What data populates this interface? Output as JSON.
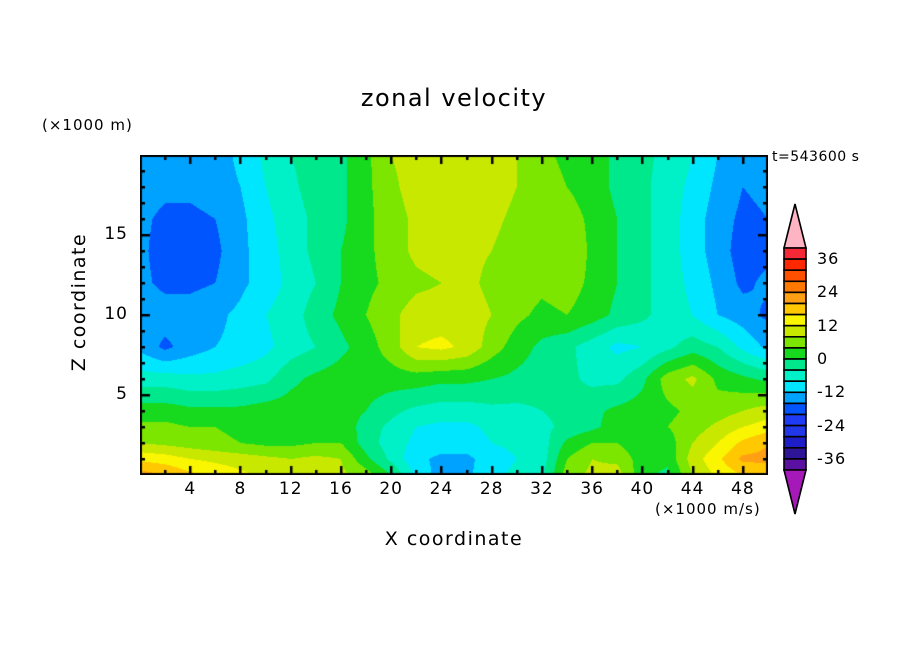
{
  "title": "zonal velocity",
  "labels": {
    "y_axis_unit": "(×1000 m)",
    "time": "t=543600 s",
    "x_axis": "X coordinate",
    "z_axis": "Z coordinate",
    "colorbar_unit": "(×1000 m/s)"
  },
  "chart_data": {
    "type": "heatmap",
    "subtype": "filled-contour",
    "title": "zonal velocity",
    "xlabel": "X coordinate",
    "ylabel": "Z coordinate",
    "x_unit": "×1000 m",
    "z_unit": "×1000 m",
    "value_unit": "×1000 m/s",
    "time_stamp": "t=543600 s",
    "x_range": [
      0,
      50
    ],
    "z_range": [
      0,
      20
    ],
    "x_major_ticks": [
      4,
      8,
      12,
      16,
      20,
      24,
      28,
      32,
      36,
      40,
      44,
      48
    ],
    "x_minor_step": 2,
    "z_major_ticks": [
      5,
      10,
      15
    ],
    "z_minor_step": 1,
    "contour_levels_min": -40,
    "contour_levels_max": 40,
    "contour_step": 4,
    "colorbar_labels": [
      "36",
      "24",
      "12",
      "0",
      "-12",
      "-24",
      "-36"
    ],
    "colorbar_label_values": [
      36,
      24,
      12,
      0,
      -12,
      -24,
      -36
    ],
    "palette_low_to_high": [
      "#5A10A0",
      "#2E1496",
      "#1E1EC8",
      "#2137E8",
      "#1E3CF5",
      "#0055FF",
      "#00A2FF",
      "#00E6FF",
      "#00F0C8",
      "#00E88C",
      "#17DA1E",
      "#7CE600",
      "#C9E800",
      "#FAF500",
      "#FFC800",
      "#FFA014",
      "#FF7800",
      "#FF5000",
      "#FF2800",
      "#F52837"
    ],
    "over_arrow_color": "#FFB4C3",
    "under_arrow_color": "#A519B9",
    "frame_color": "#000000",
    "grid": {
      "x0": 0,
      "dx": 2,
      "zs": [
        20,
        18,
        16,
        14,
        12,
        10,
        8,
        6,
        4,
        3,
        2,
        1,
        0
      ],
      "values": [
        [
          -14,
          -14,
          -14,
          -14,
          -11,
          -7,
          -4,
          -2,
          -1,
          3,
          8,
          10,
          10,
          10,
          10,
          8,
          5,
          3,
          2,
          -1,
          -3,
          -5,
          -8,
          -12,
          -14,
          -14
        ],
        [
          -14,
          -15,
          -15,
          -14,
          -12,
          -8,
          -5,
          -2,
          -1,
          3,
          7,
          10,
          11,
          10,
          10,
          8,
          6,
          4,
          2,
          -1,
          -3,
          -6,
          -9,
          -13,
          -16,
          -15
        ],
        [
          -15,
          -17,
          -17,
          -16,
          -13,
          -9,
          -6,
          -3,
          -1,
          3,
          6,
          9,
          10,
          10,
          9,
          7,
          6,
          6,
          3,
          0,
          -3,
          -6,
          -10,
          -14,
          -17,
          -16
        ],
        [
          -15,
          -18,
          -18,
          -17,
          -13,
          -10,
          -6,
          -3,
          0,
          3,
          6,
          9,
          10,
          9,
          8,
          6,
          6,
          8,
          3,
          0,
          -3,
          -6,
          -10,
          -14,
          -18,
          -17
        ],
        [
          -15,
          -17,
          -17,
          -16,
          -13,
          -10,
          -7,
          -4,
          0,
          3,
          5,
          7,
          8,
          9,
          7,
          6,
          5,
          6,
          3,
          0,
          -3,
          -6,
          -9,
          -13,
          -17,
          -15
        ],
        [
          -14,
          -14,
          -14,
          -13,
          -11,
          -8,
          -6,
          -2,
          1,
          4,
          7,
          10,
          10,
          10,
          8,
          5,
          3,
          4,
          2,
          -1,
          -3,
          -6,
          -8,
          -12,
          -14,
          -17
        ],
        [
          -13,
          -17,
          -14,
          -12,
          -11,
          -9,
          -6,
          -4,
          -1,
          2,
          6,
          12,
          13,
          11,
          6,
          2,
          -1,
          -3,
          -6,
          -9,
          -8,
          -5,
          -2,
          -4,
          -9,
          -13
        ],
        [
          -6,
          -6,
          -7,
          -7,
          -6,
          -5,
          -1,
          1,
          2,
          2,
          2,
          2,
          1,
          1,
          0,
          -1,
          -2,
          -3,
          -5,
          -5,
          -1,
          6,
          9,
          3,
          1,
          -1
        ],
        [
          2,
          2,
          1,
          1,
          1,
          2,
          2,
          2,
          2,
          0,
          -3,
          -5,
          -6,
          -6,
          -5,
          -5,
          -4,
          -3,
          -1,
          1,
          2,
          3,
          5,
          6,
          8,
          10
        ],
        [
          5,
          5,
          4,
          4,
          3,
          2,
          2,
          3,
          3,
          -2,
          -5,
          -8,
          -9,
          -9,
          -7,
          -6,
          -5,
          -3,
          -1,
          2,
          3,
          4,
          6,
          9,
          12,
          14
        ],
        [
          8,
          7,
          6,
          5,
          4,
          3,
          3,
          4,
          4,
          -2,
          -6,
          -9,
          -10,
          -10,
          -8,
          -7,
          -6,
          1,
          4,
          4,
          1,
          2,
          8,
          12,
          17,
          20
        ],
        [
          15,
          14,
          12,
          11,
          10,
          9,
          8,
          9,
          8,
          1,
          -5,
          -11,
          -13,
          -13,
          -10,
          -8,
          -6,
          4,
          8,
          7,
          2,
          1,
          10,
          15,
          21,
          21
        ],
        [
          22,
          20,
          17,
          15,
          13,
          11,
          9,
          11,
          9,
          6,
          0,
          -9,
          -14,
          -13,
          -9,
          -7,
          -5,
          6,
          9,
          10,
          1,
          -1,
          8,
          13,
          16,
          17
        ]
      ]
    }
  }
}
